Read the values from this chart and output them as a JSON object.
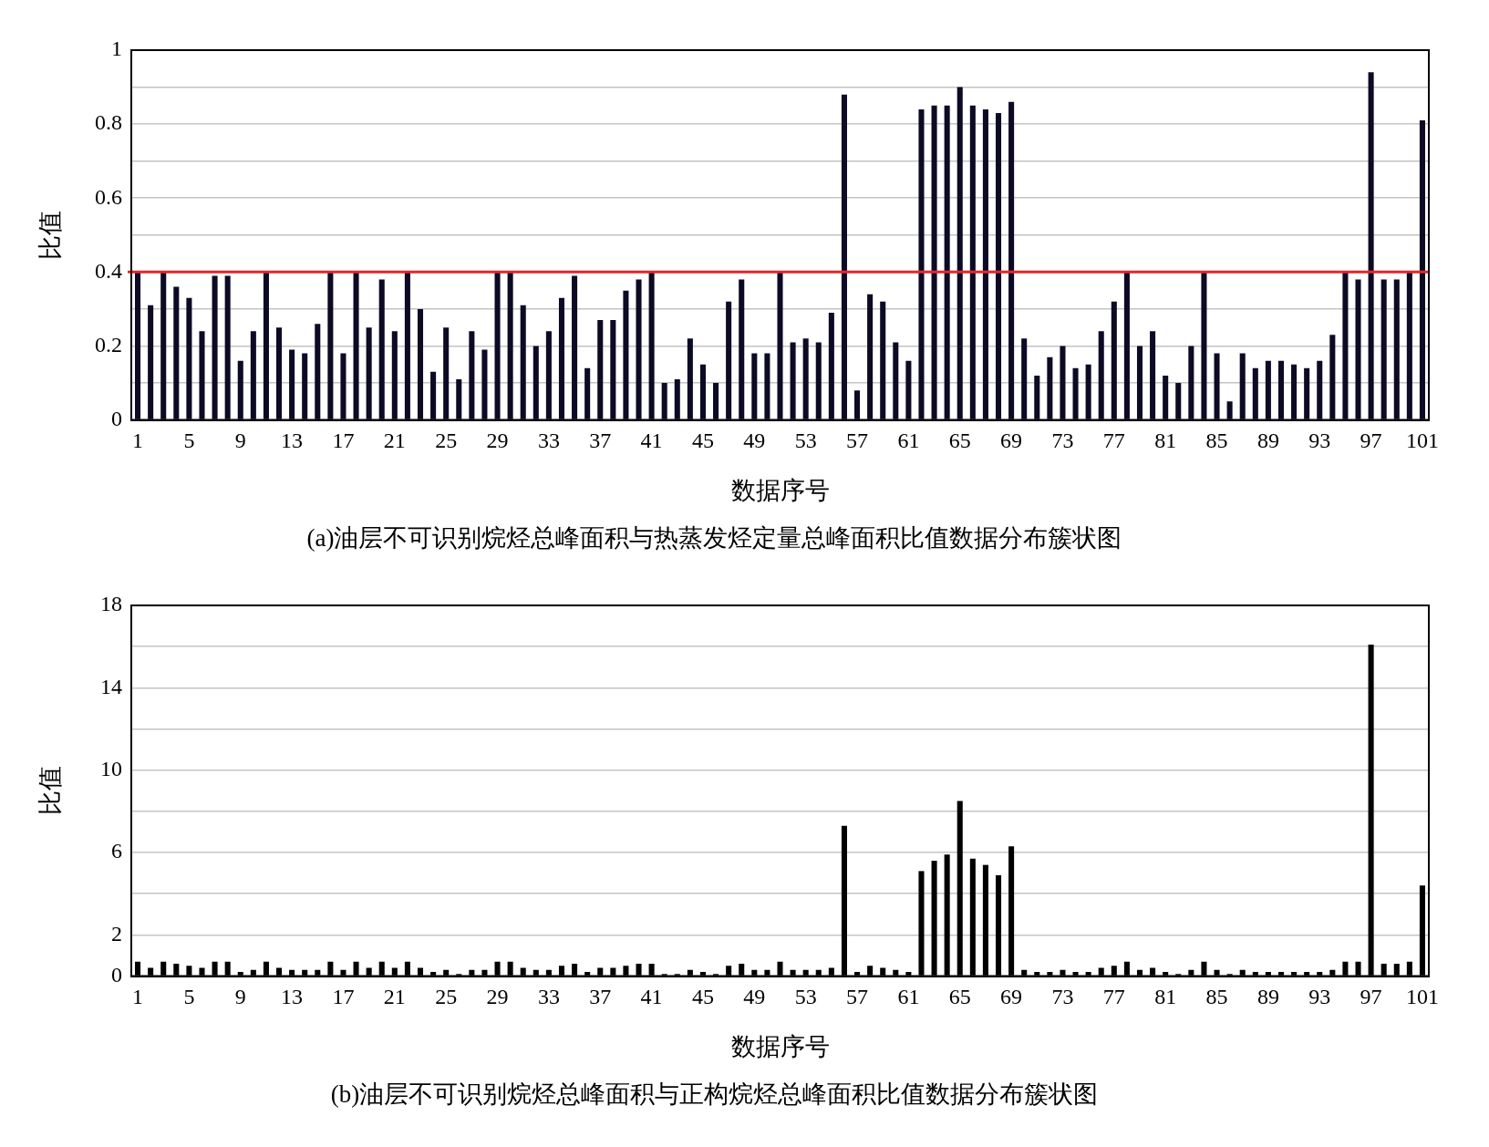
{
  "chart_data": [
    {
      "type": "bar",
      "title": "(a)油层不可识别烷烃总峰面积与热蒸发烃定量总峰面积比值数据分布簇状图",
      "xlabel": "数据序号",
      "ylabel": "比值",
      "categories": [
        "1",
        null,
        null,
        null,
        "5",
        null,
        null,
        null,
        "9",
        null,
        null,
        null,
        "13",
        null,
        null,
        null,
        "17",
        null,
        null,
        null,
        "21",
        null,
        null,
        null,
        "25",
        null,
        null,
        null,
        "29",
        null,
        null,
        null,
        "33",
        null,
        null,
        null,
        "37",
        null,
        null,
        null,
        "41",
        null,
        null,
        null,
        "45",
        null,
        null,
        null,
        "49",
        null,
        null,
        null,
        "53",
        null,
        null,
        null,
        "57",
        null,
        null,
        null,
        "61",
        null,
        null,
        null,
        "65",
        null,
        null,
        null,
        "69",
        null,
        null,
        null,
        "73",
        null,
        null,
        null,
        "77",
        null,
        null,
        null,
        "81",
        null,
        null,
        null,
        "85",
        null,
        null,
        null,
        "89",
        null,
        null,
        null,
        "93",
        null,
        null,
        null,
        "97",
        null,
        null,
        null,
        "101"
      ],
      "values": [
        0.4,
        0.31,
        0.4,
        0.36,
        0.33,
        0.24,
        0.39,
        0.39,
        0.16,
        0.24,
        0.4,
        0.25,
        0.19,
        0.18,
        0.26,
        0.4,
        0.18,
        0.4,
        0.25,
        0.38,
        0.24,
        0.4,
        0.3,
        0.13,
        0.25,
        0.11,
        0.24,
        0.19,
        0.4,
        0.4,
        0.31,
        0.2,
        0.24,
        0.33,
        0.39,
        0.14,
        0.27,
        0.27,
        0.35,
        0.38,
        0.4,
        0.1,
        0.11,
        0.22,
        0.15,
        0.1,
        0.32,
        0.38,
        0.18,
        0.18,
        0.4,
        0.21,
        0.22,
        0.21,
        0.29,
        0.88,
        0.08,
        0.34,
        0.32,
        0.21,
        0.16,
        0.84,
        0.85,
        0.85,
        0.9,
        0.85,
        0.84,
        0.83,
        0.86,
        0.22,
        0.12,
        0.17,
        0.2,
        0.14,
        0.15,
        0.24,
        0.32,
        0.4,
        0.2,
        0.24,
        0.12,
        0.1,
        0.2,
        0.4,
        0.18,
        0.05,
        0.18,
        0.14,
        0.16,
        0.16,
        0.15,
        0.14,
        0.16,
        0.23,
        0.4,
        0.38,
        0.94,
        0.38,
        0.38,
        0.4,
        0.81
      ],
      "color": "#0c0a24",
      "ylim": [
        0,
        1
      ],
      "yticks": [
        0,
        {
          "value": 0.1,
          "label": null
        },
        0.2,
        {
          "value": 0.3,
          "label": null
        },
        0.4,
        {
          "value": 0.5,
          "label": null
        },
        0.6,
        {
          "value": 0.7,
          "label": null
        },
        0.8,
        {
          "value": 0.9,
          "label": null
        },
        1
      ],
      "grid": "y",
      "ref_lines": [
        {
          "axis": "y",
          "value": 0.4,
          "color": "#e8262b"
        }
      ]
    },
    {
      "type": "bar",
      "title": "(b)油层不可识别烷烃总峰面积与正构烷烃总峰面积比值数据分布簇状图",
      "xlabel": "数据序号",
      "ylabel": "比值",
      "categories": [
        "1",
        null,
        null,
        null,
        "5",
        null,
        null,
        null,
        "9",
        null,
        null,
        null,
        "13",
        null,
        null,
        null,
        "17",
        null,
        null,
        null,
        "21",
        null,
        null,
        null,
        "25",
        null,
        null,
        null,
        "29",
        null,
        null,
        null,
        "33",
        null,
        null,
        null,
        "37",
        null,
        null,
        null,
        "41",
        null,
        null,
        null,
        "45",
        null,
        null,
        null,
        "49",
        null,
        null,
        null,
        "53",
        null,
        null,
        null,
        "57",
        null,
        null,
        null,
        "61",
        null,
        null,
        null,
        "65",
        null,
        null,
        null,
        "69",
        null,
        null,
        null,
        "73",
        null,
        null,
        null,
        "77",
        null,
        null,
        null,
        "81",
        null,
        null,
        null,
        "85",
        null,
        null,
        null,
        "89",
        null,
        null,
        null,
        "93",
        null,
        null,
        null,
        "97",
        null,
        null,
        null,
        "101"
      ],
      "values": [
        0.7,
        0.4,
        0.7,
        0.6,
        0.5,
        0.4,
        0.7,
        0.7,
        0.2,
        0.3,
        0.7,
        0.4,
        0.3,
        0.3,
        0.3,
        0.7,
        0.3,
        0.7,
        0.4,
        0.7,
        0.4,
        0.7,
        0.4,
        0.2,
        0.3,
        0.1,
        0.3,
        0.3,
        0.7,
        0.7,
        0.4,
        0.3,
        0.3,
        0.5,
        0.6,
        0.2,
        0.4,
        0.4,
        0.5,
        0.6,
        0.6,
        0.1,
        0.1,
        0.3,
        0.2,
        0.1,
        0.5,
        0.6,
        0.3,
        0.3,
        0.7,
        0.3,
        0.3,
        0.3,
        0.4,
        7.3,
        0.2,
        0.5,
        0.4,
        0.3,
        0.2,
        5.1,
        5.6,
        5.9,
        8.5,
        5.7,
        5.4,
        4.9,
        6.3,
        0.3,
        0.2,
        0.2,
        0.3,
        0.2,
        0.2,
        0.4,
        0.5,
        0.7,
        0.3,
        0.4,
        0.2,
        0.1,
        0.3,
        0.7,
        0.3,
        0.1,
        0.3,
        0.2,
        0.2,
        0.2,
        0.2,
        0.2,
        0.2,
        0.3,
        0.7,
        0.7,
        16.1,
        0.6,
        0.6,
        0.7,
        4.4
      ],
      "color": "#000000",
      "ylim": [
        0,
        18
      ],
      "yticks": [
        0,
        2,
        {
          "value": 4,
          "label": null
        },
        6,
        {
          "value": 8,
          "label": null
        },
        10,
        {
          "value": 12,
          "label": null
        },
        14,
        {
          "value": 16,
          "label": null
        },
        18
      ],
      "grid": "y"
    }
  ]
}
